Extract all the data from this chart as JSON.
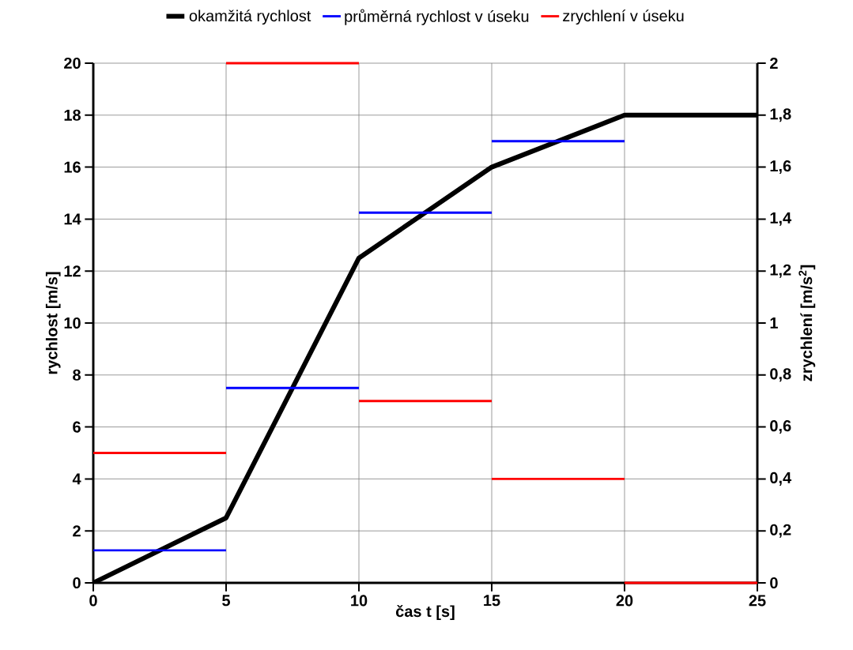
{
  "chart_data": {
    "type": "line",
    "xlabel": "čas t [s]",
    "ylabel": "rychlost [m/s]",
    "y2label": "zrychlení [m/s$^{2}$]",
    "xlim": [
      0,
      25
    ],
    "ylim": [
      0,
      20
    ],
    "y2lim": [
      0,
      2
    ],
    "xticks": [
      0,
      5,
      10,
      15,
      20,
      25
    ],
    "yticks": [
      0,
      2,
      4,
      6,
      8,
      10,
      12,
      14,
      16,
      18,
      20
    ],
    "y2ticks": [
      0,
      {
        "value": 0.2,
        "label": "0,2"
      },
      {
        "value": 0.4,
        "label": "0,4"
      },
      {
        "value": 0.6,
        "label": "0,6"
      },
      {
        "value": 0.8,
        "label": "0,8"
      },
      1,
      {
        "value": 1.2,
        "label": "1,2"
      },
      {
        "value": 1.4,
        "label": "1,4"
      },
      {
        "value": 1.6,
        "label": "1,6"
      },
      {
        "value": 1.8,
        "label": "1,8"
      },
      2
    ],
    "grid": true,
    "legend": "top",
    "series": [
      {
        "name": "okamžitá rychlost",
        "color": "#000000",
        "x": [
          0,
          5,
          10,
          15,
          20,
          25
        ],
        "values": [
          0,
          2.5,
          12.5,
          16,
          18,
          18
        ]
      },
      {
        "name": "průměrná rychlost v úseku",
        "color": "#0000ff",
        "x": [
          0,
          5
        ],
        "values": [
          1.25,
          1.25
        ]
      },
      {
        "color": "#0000ff",
        "x": [
          5,
          10
        ],
        "values": [
          7.5,
          7.5
        ]
      },
      {
        "color": "#0000ff",
        "x": [
          10,
          15
        ],
        "values": [
          14.25,
          14.25
        ]
      },
      {
        "color": "#0000ff",
        "x": [
          15,
          20
        ],
        "values": [
          17,
          17
        ]
      },
      {
        "name": "zrychlení v úseku",
        "color": "#ff0000",
        "axis": "y2",
        "x": [
          0,
          5
        ],
        "values": [
          0.5,
          0.5
        ]
      },
      {
        "color": "#ff0000",
        "axis": "y2",
        "x": [
          5,
          10
        ],
        "values": [
          2,
          2
        ]
      },
      {
        "color": "#ff0000",
        "axis": "y2",
        "x": [
          10,
          15
        ],
        "values": [
          0.7,
          0.7
        ]
      },
      {
        "color": "#ff0000",
        "axis": "y2",
        "x": [
          15,
          20
        ],
        "values": [
          0.4,
          0.4
        ]
      },
      {
        "color": "#ff0000",
        "axis": "y2",
        "x": [
          20,
          25
        ],
        "values": [
          0,
          0
        ]
      }
    ]
  }
}
